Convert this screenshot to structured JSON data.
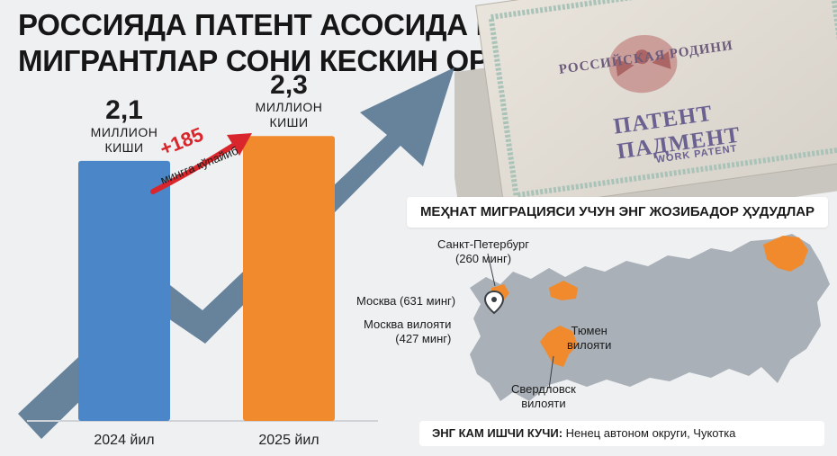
{
  "title": {
    "line1": "РОССИЯДА ПАТЕНТ АСОСИДА ИШЛОВЧИ",
    "line2": "МИГРАНТЛАР СОНИ КЕСКИН ОРТДИ"
  },
  "chart_data": {
    "type": "bar",
    "categories": [
      "2024 йил",
      "2025 йил"
    ],
    "values": [
      2.1,
      2.3
    ],
    "value_labels": [
      "2,1",
      "2,3"
    ],
    "unit_label": "МИЛЛИОН КИШИ",
    "unit_lines": [
      "МИЛЛИОН",
      "КИШИ"
    ],
    "ylim": [
      0,
      2.6
    ],
    "grid": false,
    "bar_colors": [
      "#4a86c8",
      "#f08a2c"
    ],
    "annotation": {
      "value": "+185",
      "text": "мингга кўпайиб",
      "color": "#d9262c"
    }
  },
  "document": {
    "header": "РОССИЙСКАЯ РОДИНИ",
    "title": "ПАТЕНТ ПАДМЕНТ",
    "subtitle": "WORK PATENT"
  },
  "map": {
    "title": "МЕҲНАТ МИГРАЦИЯСИ УЧУН ЭНГ ЖОЗИБАДОР ҲУДУДЛАР",
    "land_color": "#a9b0b8",
    "highlight_color": "#f08a2c",
    "labels": {
      "spb": [
        "Санкт-Петербург",
        "(260 минг)"
      ],
      "moscow": "Москва (631 минг)",
      "moscow_region": [
        "Москва вилояти",
        "(427 минг)"
      ],
      "tyumen": [
        "Тюмен",
        "вилояти"
      ],
      "sverdlovsk": [
        "Свердловск",
        "вилояти"
      ]
    },
    "footer_bold": "ЭНГ КАМ ИШЧИ КУЧИ:",
    "footer_text": " Ненец автоном округи, Чукотка"
  }
}
